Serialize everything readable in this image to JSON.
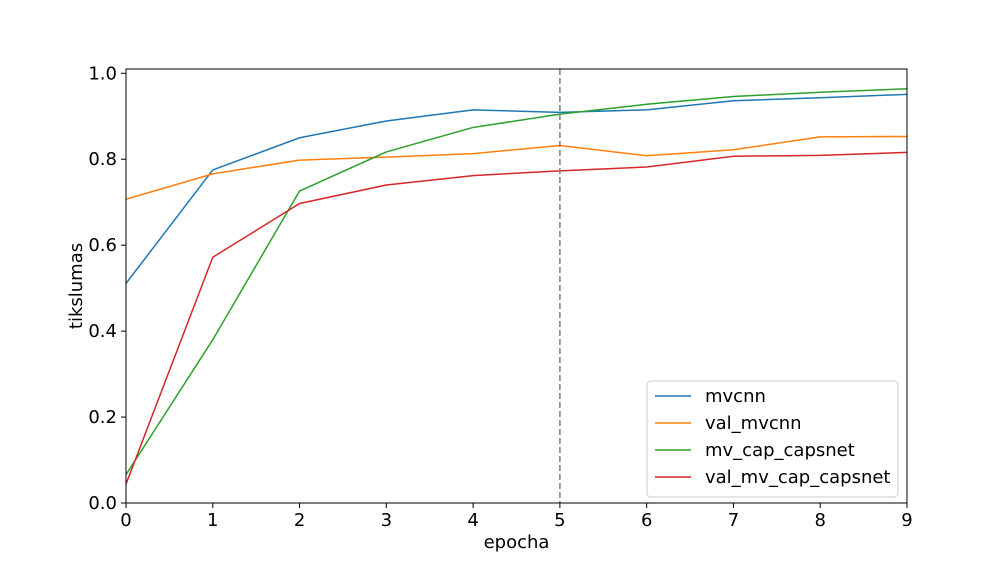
{
  "chart_data": {
    "type": "line",
    "title": "",
    "xlabel": "epocha",
    "ylabel": "tikslumas",
    "xlim": [
      0,
      9
    ],
    "ylim": [
      0,
      1.01
    ],
    "xticks": [
      0,
      1,
      2,
      3,
      4,
      5,
      6,
      7,
      8,
      9
    ],
    "yticks": [
      0.0,
      0.2,
      0.4,
      0.6,
      0.8,
      1.0
    ],
    "ytick_labels": [
      "0.0",
      "0.2",
      "0.4",
      "0.6",
      "0.8",
      "1.0"
    ],
    "grid": false,
    "legend_position": "lower-right",
    "vline": {
      "x": 5,
      "style": "dashed",
      "color": "#808080"
    },
    "x": [
      0,
      1,
      2,
      3,
      4,
      5,
      6,
      7,
      8,
      9
    ],
    "series": [
      {
        "name": "mvcnn",
        "color": "#1f77b4",
        "values": [
          0.511,
          0.775,
          0.85,
          0.889,
          0.915,
          0.909,
          0.915,
          0.936,
          0.943,
          0.951
        ]
      },
      {
        "name": "val_mvcnn",
        "color": "#ff7f0e",
        "values": [
          0.707,
          0.766,
          0.798,
          0.805,
          0.813,
          0.832,
          0.808,
          0.822,
          0.852,
          0.853
        ]
      },
      {
        "name": "mv_cap_capsnet",
        "color": "#2ca02c",
        "values": [
          0.066,
          0.38,
          0.726,
          0.817,
          0.874,
          0.905,
          0.928,
          0.946,
          0.956,
          0.964
        ]
      },
      {
        "name": "val_mv_cap_capsnet",
        "color": "#d62728",
        "values": [
          0.044,
          0.572,
          0.697,
          0.74,
          0.762,
          0.773,
          0.782,
          0.807,
          0.809,
          0.816
        ]
      }
    ]
  }
}
